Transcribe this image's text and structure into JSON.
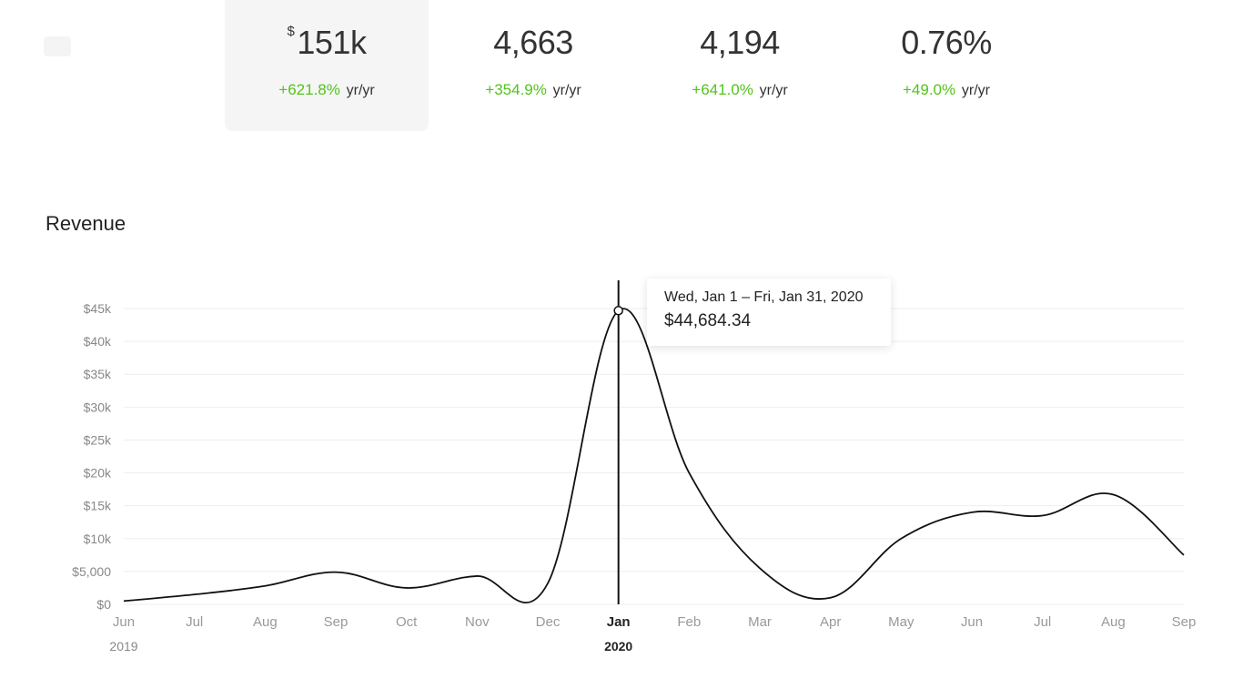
{
  "metrics": [
    {
      "currency": "$",
      "value": "151k",
      "change": "+621.8%",
      "unit": "yr/yr",
      "active": true
    },
    {
      "currency": "",
      "value": "4,663",
      "change": "+354.9%",
      "unit": "yr/yr",
      "active": false
    },
    {
      "currency": "",
      "value": "4,194",
      "change": "+641.0%",
      "unit": "yr/yr",
      "active": false
    },
    {
      "currency": "",
      "value": "0.76%",
      "change": "+49.0%",
      "unit": "yr/yr",
      "active": false
    }
  ],
  "section_title": "Revenue",
  "tooltip": {
    "date_range": "Wed, Jan 1 – Fri, Jan 31, 2020",
    "value": "$44,684.34"
  },
  "colors": {
    "positive": "#52c41a",
    "line": "#111111",
    "grid": "#eeeeee"
  },
  "chart_data": {
    "type": "line",
    "title": "Revenue",
    "xlabel": "",
    "ylabel": "",
    "categories": [
      "Jun",
      "Jul",
      "Aug",
      "Sep",
      "Oct",
      "Nov",
      "Dec",
      "Jan",
      "Feb",
      "Mar",
      "Apr",
      "May",
      "Jun",
      "Jul",
      "Aug",
      "Sep"
    ],
    "year_labels": [
      {
        "index": 0,
        "label": "2019"
      },
      {
        "index": 7,
        "label": "2020"
      }
    ],
    "series": [
      {
        "name": "Revenue",
        "values": [
          500,
          1500,
          2800,
          4900,
          2500,
          4300,
          3200,
          44684,
          20000,
          5500,
          1000,
          10000,
          14000,
          13500,
          16700,
          7500
        ]
      }
    ],
    "y_ticks": [
      {
        "value": 0,
        "label": "$0"
      },
      {
        "value": 5000,
        "label": "$5,000"
      },
      {
        "value": 10000,
        "label": "$10k"
      },
      {
        "value": 15000,
        "label": "$15k"
      },
      {
        "value": 20000,
        "label": "$20k"
      },
      {
        "value": 25000,
        "label": "$25k"
      },
      {
        "value": 30000,
        "label": "$30k"
      },
      {
        "value": 35000,
        "label": "$35k"
      },
      {
        "value": 40000,
        "label": "$40k"
      },
      {
        "value": 45000,
        "label": "$45k"
      }
    ],
    "ylim": [
      0,
      45000
    ],
    "highlight_index": 7,
    "grid": true
  }
}
